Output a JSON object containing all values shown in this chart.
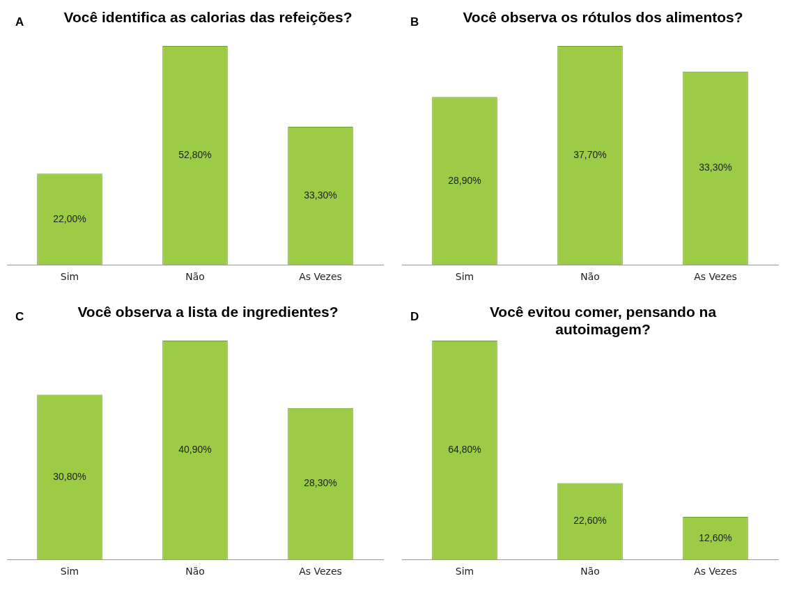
{
  "chart_data": [
    {
      "type": "bar",
      "title": "Você identifica as calorias das refeições?",
      "annotations": [
        "A"
      ],
      "categories": [
        "Sim",
        "Não",
        "As Vezes"
      ],
      "values": [
        22.0,
        52.8,
        33.3
      ],
      "value_labels": [
        "22,00%",
        "52,80%",
        "33,30%"
      ],
      "color": "#9ccb45",
      "grid": false,
      "legend": false,
      "tick_labels": "x"
    },
    {
      "type": "bar",
      "title": "Você observa os rótulos dos alimentos?",
      "annotations": [
        "B"
      ],
      "categories": [
        "Sim",
        "Não",
        "As Vezes"
      ],
      "values": [
        28.9,
        37.7,
        33.3
      ],
      "value_labels": [
        "28,90%",
        "37,70%",
        "33,30%"
      ],
      "color": "#9ccb45",
      "grid": false,
      "legend": false,
      "tick_labels": "x"
    },
    {
      "type": "bar",
      "title": "Você observa a lista de ingredientes?",
      "annotations": [
        "C"
      ],
      "categories": [
        "Sim",
        "Não",
        "As Vezes"
      ],
      "values": [
        30.8,
        40.9,
        28.3
      ],
      "value_labels": [
        "30,80%",
        "40,90%",
        "28,30%"
      ],
      "color": "#9ccb45",
      "grid": false,
      "legend": false,
      "tick_labels": "x"
    },
    {
      "type": "bar",
      "title": "Você evitou comer, pensando na autoimagem?",
      "annotations": [
        "D"
      ],
      "categories": [
        "Sim",
        "Não",
        "As Vezes"
      ],
      "values": [
        64.8,
        22.6,
        12.6
      ],
      "value_labels": [
        "64,80%",
        "22,60%",
        "12,60%"
      ],
      "color": "#9ccb45",
      "grid": false,
      "legend": false,
      "tick_labels": "x"
    }
  ]
}
